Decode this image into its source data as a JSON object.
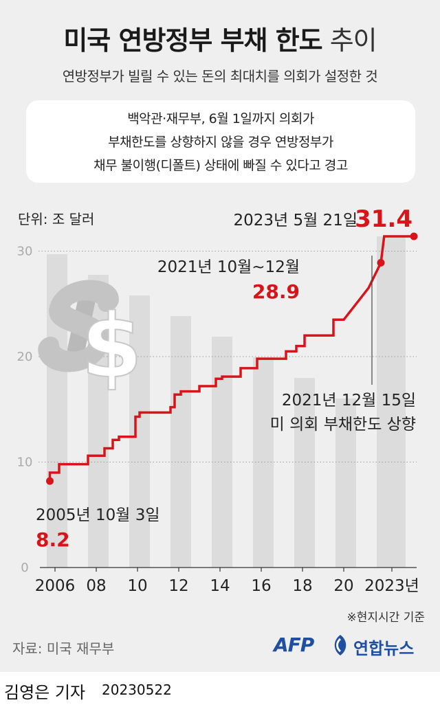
{
  "title_bold": "미국 연방정부 부채 한도",
  "title_light": " 추이",
  "subtitle": "연방정부가 빌릴 수 있는 돈의 최대치를 의회가 설정한 것",
  "note_lines": [
    "백악관·재무부, 6월 1일까지 의회가",
    "부채한도를 상향하지 않을 경우 연방정부가",
    "채무 불이행(디폴트) 상태에 빠질 수 있다고 경고"
  ],
  "unit_label": "단위: 조 달러",
  "chart_data": {
    "type": "line",
    "unit": "조 달러",
    "ylim": [
      0,
      31.4
    ],
    "y_ticks": [
      "0",
      "10",
      "20",
      "30"
    ],
    "x_ticks": [
      "2006",
      "08",
      "10",
      "12",
      "14",
      "16",
      "18",
      "20",
      "2023년"
    ],
    "grid": "horizontal dotted",
    "series": [
      {
        "values_x": [
          2005.75,
          2006.2,
          2007.6,
          2008.4,
          2008.8,
          2009.1,
          2009.9,
          2010.1,
          2011.6,
          2011.8,
          2012.1,
          2013.0,
          2013.8,
          2014.1,
          2015.0,
          2015.8,
          2016.5,
          2017.2,
          2017.7,
          2018.1,
          2018.7,
          2019.5,
          2020.0,
          2021.2,
          2021.8,
          2021.96,
          2023.4
        ],
        "values": [
          8.2,
          9.0,
          9.8,
          10.6,
          11.3,
          12.1,
          12.4,
          14.3,
          14.7,
          15.2,
          16.4,
          16.7,
          17.2,
          17.9,
          18.1,
          18.9,
          19.8,
          19.8,
          20.5,
          21.0,
          22.0,
          22.0,
          23.5,
          26.5,
          28.9,
          31.4,
          31.4
        ]
      }
    ],
    "annotations": [
      {
        "date": "2005년 10월 3일",
        "value": "8.2"
      },
      {
        "date": "2021년 10월~12월",
        "value": "28.9"
      },
      {
        "date": "2023년 5월 21일",
        "value": "31.4"
      },
      {
        "date": "2021년 12월 15일",
        "text": "미 의회 부채한도 상향"
      }
    ],
    "line_color": "#d7141a"
  },
  "footnote": "※현지시간 기준",
  "source": "자료: 미국 재무부",
  "logo_afp": "AFP",
  "logo_yna": "연합뉴스",
  "icon_logo": "yonhap-logo-icon",
  "icon_dollar": "dollar-sign-icon",
  "reporter": "김영은 기자",
  "date": "20230522"
}
